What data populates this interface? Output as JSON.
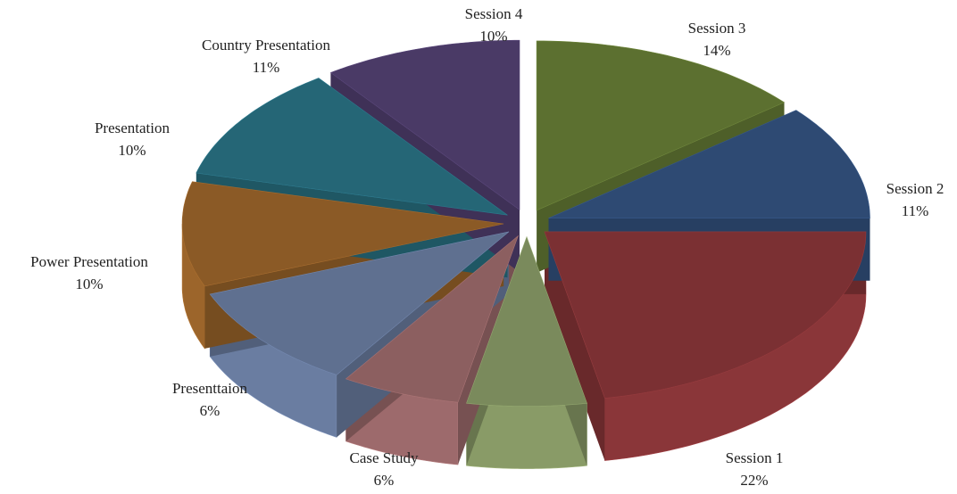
{
  "chart_data": {
    "type": "pie",
    "categories": [
      "Session 1",
      "Case Study",
      "Presenttaion",
      "Power Presentation",
      "Presentation",
      "Country Presentation",
      "Session 4",
      "Session 3",
      "Session 2"
    ],
    "values": [
      22,
      6,
      6,
      10,
      10,
      11,
      10,
      14,
      11
    ],
    "value_labels": [
      "22%",
      "6%",
      "6%",
      "10%",
      "10%",
      "11%",
      "10%",
      "14%",
      "11%"
    ],
    "colors": [
      "#7b3033",
      "#7a8a5c",
      "#8c5f60",
      "#5f7090",
      "#8b5a26",
      "#256676",
      "#4a3a66",
      "#5c7030",
      "#2e4a73"
    ]
  }
}
